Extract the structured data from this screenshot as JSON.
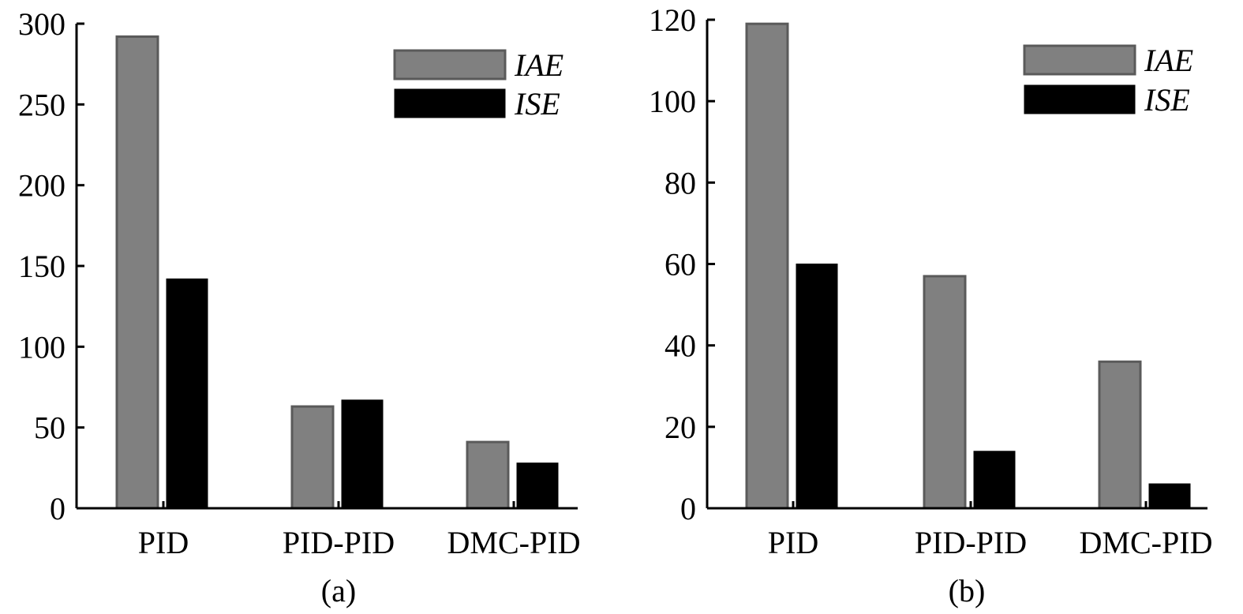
{
  "chart_data": [
    {
      "type": "bar",
      "panel": "(a)",
      "categories": [
        "PID",
        "PID-PID",
        "DMC-PID"
      ],
      "series": [
        {
          "name": "IAE",
          "color": "#808080",
          "values": [
            292,
            63,
            41
          ]
        },
        {
          "name": "ISE",
          "color": "#000000",
          "values": [
            142,
            67,
            28
          ]
        }
      ],
      "ylim": [
        0,
        300
      ],
      "yticks": [
        "0",
        "50",
        "100",
        "150",
        "200",
        "250",
        "300"
      ],
      "ytick_values": [
        0,
        50,
        100,
        150,
        200,
        250,
        300
      ],
      "legend": "top-right",
      "grid": false
    },
    {
      "type": "bar",
      "panel": "(b)",
      "categories": [
        "PID",
        "PID-PID",
        "DMC-PID"
      ],
      "series": [
        {
          "name": "IAE",
          "color": "#808080",
          "values": [
            119,
            57,
            36
          ]
        },
        {
          "name": "ISE",
          "color": "#000000",
          "values": [
            60,
            14,
            6
          ]
        }
      ],
      "ylim": [
        0,
        120
      ],
      "yticks": [
        "0",
        "20",
        "40",
        "60",
        "80",
        "100",
        "120"
      ],
      "ytick_values": [
        0,
        20,
        40,
        60,
        80,
        100,
        120
      ],
      "legend": "top-right",
      "grid": false
    }
  ]
}
